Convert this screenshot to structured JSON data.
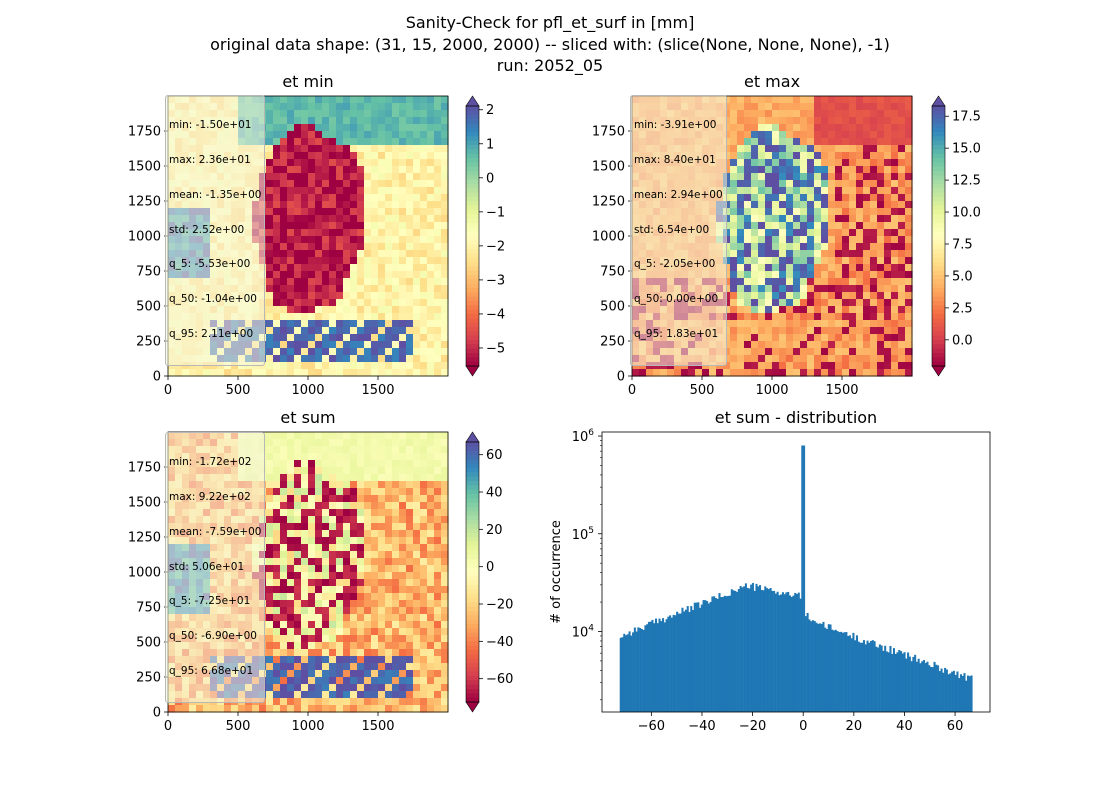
{
  "figure": {
    "title_line1": "Sanity-Check for pfl_et_surf in [mm]",
    "title_line2": "original data shape: (31, 15, 2000, 2000) -- sliced with: (slice(None, None, None), -1)",
    "title_line3": "run: 2052_05"
  },
  "colormap": [
    "#9e0142",
    "#d53e4f",
    "#f46d43",
    "#fdae61",
    "#fee08b",
    "#ffffbf",
    "#e6f598",
    "#abdda4",
    "#66c2a5",
    "#3288bd",
    "#5e4fa2"
  ],
  "bar_color": "#1f77b4",
  "chart_data": [
    {
      "type": "heatmap",
      "title": "et min",
      "xlim": [
        0,
        2000
      ],
      "ylim": [
        0,
        2000
      ],
      "x_ticks": [
        0,
        500,
        1000,
        1500
      ],
      "y_ticks": [
        0,
        250,
        500,
        750,
        1000,
        1250,
        1500,
        1750
      ],
      "colorbar": {
        "vmin": -5.53,
        "vmax": 2.11,
        "ticks": [
          -5,
          -4,
          -3,
          -2,
          -1,
          0,
          1,
          2
        ],
        "extend": "both"
      },
      "stats": [
        "min: -1.50e+01",
        "max: 2.36e+01",
        "mean: -1.35e+00",
        "std: 2.52e+00",
        "q_5: -5.53e+00",
        "q_50: -1.04e+00",
        "q_95: 2.11e+00"
      ]
    },
    {
      "type": "heatmap",
      "title": "et max",
      "xlim": [
        0,
        2000
      ],
      "ylim": [
        0,
        2000
      ],
      "x_ticks": [
        0,
        500,
        1000,
        1500
      ],
      "y_ticks": [
        0,
        250,
        500,
        750,
        1000,
        1250,
        1500,
        1750
      ],
      "colorbar": {
        "vmin": -2.05,
        "vmax": 18.3,
        "ticks": [
          0.0,
          2.5,
          5.0,
          7.5,
          10.0,
          12.5,
          15.0,
          17.5
        ],
        "extend": "both"
      },
      "stats": [
        "min: -3.91e+00",
        "max: 8.40e+01",
        "mean: 2.94e+00",
        "std: 6.54e+00",
        "q_5: -2.05e+00",
        "q_50: 0.00e+00",
        "q_95: 1.83e+01"
      ]
    },
    {
      "type": "heatmap",
      "title": "et sum",
      "xlim": [
        0,
        2000
      ],
      "ylim": [
        0,
        2000
      ],
      "x_ticks": [
        0,
        500,
        1000,
        1500
      ],
      "y_ticks": [
        0,
        250,
        500,
        750,
        1000,
        1250,
        1500,
        1750
      ],
      "colorbar": {
        "vmin": -72.5,
        "vmax": 66.8,
        "ticks": [
          -60,
          -40,
          -20,
          0,
          20,
          40,
          60
        ],
        "extend": "both"
      },
      "stats": [
        "min: -1.72e+02",
        "max: 9.22e+02",
        "mean: -7.59e+00",
        "std: 5.06e+01",
        "q_5: -7.25e+01",
        "q_50: -6.90e+00",
        "q_95: 6.68e+01"
      ]
    },
    {
      "type": "bar",
      "title": "et sum - distribution",
      "ylabel": "# of occurrence",
      "yscale": "log",
      "xlim": [
        -79.5,
        73.8
      ],
      "ylim": [
        1500,
        1100000
      ],
      "x_ticks": [
        -60,
        -40,
        -20,
        0,
        20,
        40,
        60
      ],
      "y_ticks": [
        10000,
        100000,
        1000000
      ],
      "hist_range": [
        -72.5,
        66.8
      ],
      "bins": 200,
      "spike": {
        "x": 0,
        "count": 800000
      }
    }
  ]
}
